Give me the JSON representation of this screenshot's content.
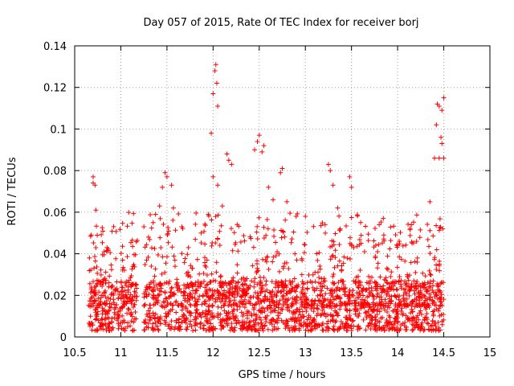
{
  "chart_data": {
    "type": "scatter",
    "title": "Day 057 of 2015, Rate Of TEC Index for receiver borj",
    "xlabel": "GPS time / hours",
    "ylabel": "ROTI / TECUs",
    "xlim": [
      10.5,
      15
    ],
    "ylim": [
      0,
      0.14
    ],
    "xticks": [
      "10.5",
      "11",
      "11.5",
      "12",
      "12.5",
      "13",
      "13.5",
      "14",
      "14.5",
      "15"
    ],
    "yticks": [
      "0",
      "0.02",
      "0.04",
      "0.06",
      "0.08",
      "0.1",
      "0.12",
      "0.14"
    ],
    "grid": true,
    "marker": "plus",
    "color": "#ff0000",
    "series": [
      {
        "name": "ROTI",
        "data_range": [
          10.65,
          14.5
        ],
        "gap": [
          11.18,
          11.25
        ],
        "baseline_range": [
          0.003,
          0.027
        ],
        "outliers": [
          [
            10.7,
            0.077
          ],
          [
            10.7,
            0.074
          ],
          [
            10.72,
            0.073
          ],
          [
            10.73,
            0.061
          ],
          [
            10.68,
            0.049
          ],
          [
            10.85,
            0.043
          ],
          [
            11.25,
            0.053
          ],
          [
            11.3,
            0.048
          ],
          [
            11.35,
            0.055
          ],
          [
            11.42,
            0.063
          ],
          [
            11.45,
            0.072
          ],
          [
            11.48,
            0.079
          ],
          [
            11.5,
            0.077
          ],
          [
            11.55,
            0.073
          ],
          [
            11.57,
            0.062
          ],
          [
            11.98,
            0.098
          ],
          [
            12.0,
            0.117
          ],
          [
            12.02,
            0.128
          ],
          [
            12.03,
            0.131
          ],
          [
            12.04,
            0.122
          ],
          [
            12.05,
            0.111
          ],
          [
            12.0,
            0.077
          ],
          [
            12.05,
            0.073
          ],
          [
            12.1,
            0.063
          ],
          [
            12.15,
            0.088
          ],
          [
            12.17,
            0.085
          ],
          [
            12.2,
            0.083
          ],
          [
            12.45,
            0.09
          ],
          [
            12.48,
            0.094
          ],
          [
            12.5,
            0.097
          ],
          [
            12.53,
            0.089
          ],
          [
            12.55,
            0.092
          ],
          [
            12.6,
            0.072
          ],
          [
            12.65,
            0.066
          ],
          [
            12.75,
            0.081
          ],
          [
            12.73,
            0.079
          ],
          [
            12.8,
            0.065
          ],
          [
            12.9,
            0.058
          ],
          [
            13.0,
            0.058
          ],
          [
            13.25,
            0.083
          ],
          [
            13.27,
            0.08
          ],
          [
            13.3,
            0.073
          ],
          [
            13.35,
            0.062
          ],
          [
            13.48,
            0.077
          ],
          [
            13.5,
            0.072
          ],
          [
            13.6,
            0.055
          ],
          [
            13.8,
            0.054
          ],
          [
            13.85,
            0.049
          ],
          [
            14.0,
            0.044
          ],
          [
            14.35,
            0.065
          ],
          [
            14.4,
            0.086
          ],
          [
            14.42,
            0.102
          ],
          [
            14.43,
            0.112
          ],
          [
            14.45,
            0.111
          ],
          [
            14.47,
            0.096
          ],
          [
            14.48,
            0.093
          ],
          [
            14.5,
            0.115
          ],
          [
            14.48,
            0.109
          ],
          [
            14.45,
            0.086
          ],
          [
            14.5,
            0.086
          ]
        ]
      }
    ]
  }
}
